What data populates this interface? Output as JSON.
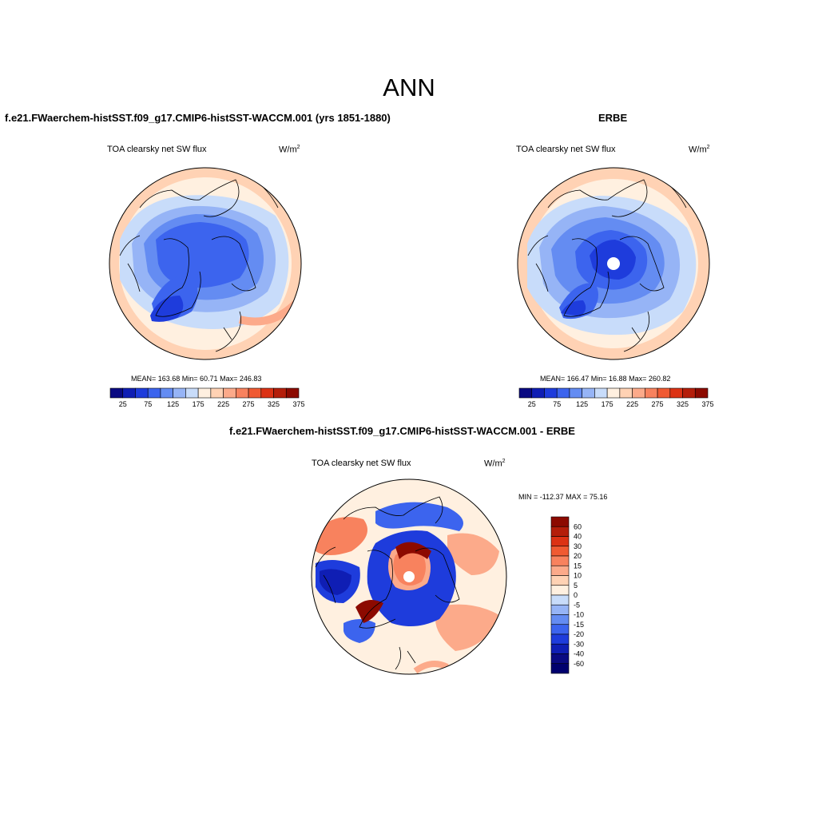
{
  "title": "ANN",
  "panels": {
    "model": {
      "heading": "f.e21.FWaerchem-histSST.f09_g17.CMIP6-histSST-WACCM.001 (yrs 1851-1880)",
      "variable": "TOA clearsky net SW flux",
      "units": "W/m",
      "units_exp": "2",
      "stats": "MEAN= 163.68  Min=  60.71  Max= 246.83"
    },
    "obs": {
      "heading": "ERBE",
      "variable": "TOA clearsky net SW flux",
      "units": "W/m",
      "units_exp": "2",
      "stats": "MEAN= 166.47  Min=  16.88  Max= 260.82"
    },
    "diff": {
      "heading": "f.e21.FWaerchem-histSST.f09_g17.CMIP6-histSST-WACCM.001 - ERBE",
      "variable": "TOA clearsky net SW flux",
      "units": "W/m",
      "units_exp": "2",
      "stats": "MIN = -112.37 MAX =  75.16"
    }
  },
  "colorbar_abs": {
    "ticks": [
      "25",
      "75",
      "125",
      "175",
      "225",
      "275",
      "325",
      "375"
    ],
    "colors": [
      "#0a0a82",
      "#0f1eb4",
      "#1e3cdc",
      "#3c64ee",
      "#648cf2",
      "#96b4f6",
      "#c8dcfa",
      "#fff0e0",
      "#ffd2b4",
      "#fcaa8a",
      "#f8825e",
      "#f05a32",
      "#dc3214",
      "#b41e0a",
      "#8c0a00"
    ]
  },
  "colorbar_diff": {
    "ticks": [
      "60",
      "40",
      "30",
      "20",
      "15",
      "10",
      "5",
      "0",
      "-5",
      "-10",
      "-15",
      "-20",
      "-30",
      "-40",
      "-60"
    ],
    "colors": [
      "#8c0a00",
      "#b41e0a",
      "#dc3214",
      "#f05a32",
      "#f8825e",
      "#fcaa8a",
      "#ffd2b4",
      "#fff0e0",
      "#c8dcfa",
      "#96b4f6",
      "#648cf2",
      "#3c64ee",
      "#1e3cdc",
      "#0f1eb4",
      "#0a0a82",
      "#00006e"
    ]
  }
}
